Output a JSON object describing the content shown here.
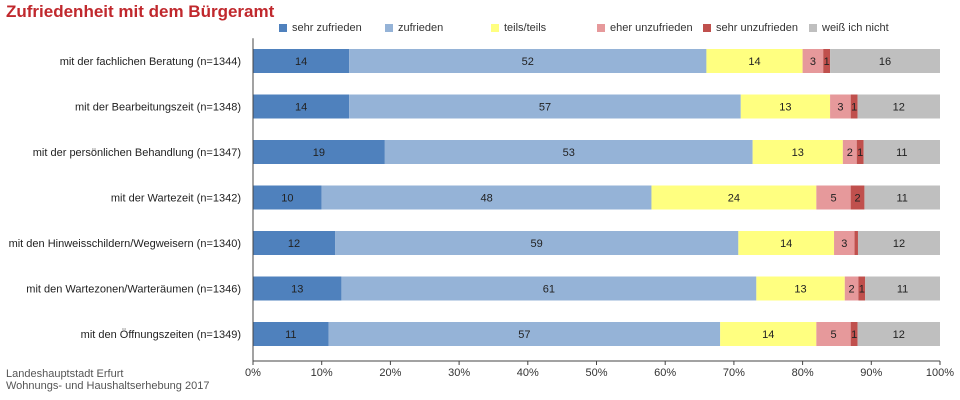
{
  "chart_data": {
    "type": "bar",
    "orientation": "horizontal",
    "stacked": true,
    "title": "Zufriedenheit mit dem Bürgeramt",
    "categories": [
      "mit der fachlichen Beratung (n=1344)",
      "mit der Bearbeitungszeit (n=1348)",
      "mit der persönlichen Behandlung (n=1347)",
      "mit der Wartezeit (n=1342)",
      "mit den Hinweisschildern/Wegweisern (n=1340)",
      "mit den Wartezonen/Warteräumen (n=1346)",
      "mit den Öffnungszeiten (n=1349)"
    ],
    "series": [
      {
        "name": "sehr zufrieden",
        "color": "#4f81bd",
        "values": [
          14,
          14,
          19,
          10,
          12,
          13,
          11
        ],
        "labels": [
          "14",
          "14",
          "19",
          "10",
          "12",
          "13",
          "11"
        ]
      },
      {
        "name": "zufrieden",
        "color": "#95b3d7",
        "values": [
          52,
          57,
          53,
          48,
          59,
          61,
          57
        ],
        "labels": [
          "52",
          "57",
          "53",
          "48",
          "59",
          "61",
          "57"
        ]
      },
      {
        "name": "teils/teils",
        "color": "#ffff80",
        "values": [
          14,
          13,
          13,
          24,
          14,
          13,
          14
        ],
        "labels": [
          "14",
          "13",
          "13",
          "24",
          "14",
          "13",
          "14"
        ]
      },
      {
        "name": "eher unzufrieden",
        "color": "#e6999b",
        "values": [
          3,
          3,
          2,
          5,
          3,
          2,
          5
        ],
        "labels": [
          "3",
          "3",
          "2",
          "5",
          "3",
          "2",
          "5"
        ]
      },
      {
        "name": "sehr unzufrieden",
        "color": "#c0504d",
        "values": [
          1,
          1,
          1,
          2,
          0.5,
          1,
          1
        ],
        "labels": [
          "1",
          "1",
          "1",
          "2",
          "",
          "1",
          "1"
        ]
      },
      {
        "name": "weiß ich nicht",
        "color": "#bfbfbf",
        "values": [
          16,
          12,
          11,
          11,
          12,
          11,
          12
        ],
        "labels": [
          "16",
          "12",
          "11",
          "11",
          "12",
          "11",
          "12"
        ]
      }
    ],
    "x_ticks": [
      "0%",
      "10%",
      "20%",
      "30%",
      "40%",
      "50%",
      "60%",
      "70%",
      "80%",
      "90%",
      "100%"
    ],
    "xlim": [
      0,
      100
    ],
    "grid": false,
    "legend_position": "top"
  },
  "footer": {
    "line1": "Landeshauptstadt Erfurt",
    "line2": "Wohnungs- und Haushaltserhebung 2017"
  }
}
